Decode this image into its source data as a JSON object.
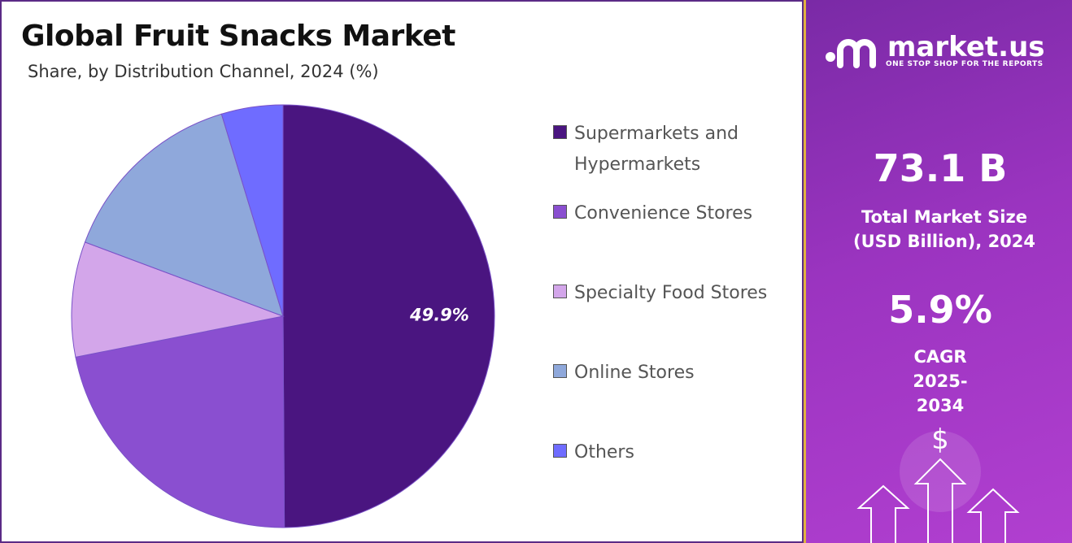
{
  "chart_data": {
    "type": "pie",
    "title": "Global Fruit Snacks Market",
    "subtitle": "Share, by Distribution Channel, 2024 (%)",
    "categories": [
      "Supermarkets and Hypermarkets",
      "Convenience Stores",
      "Specialty Food Stores",
      "Online Stores",
      "Others"
    ],
    "values": [
      49.9,
      22.0,
      8.8,
      14.6,
      4.7
    ],
    "value_labels": [
      "49.9%",
      null,
      null,
      null,
      null
    ],
    "colors": [
      "#4a1580",
      "#8a4fd0",
      "#d3a6ea",
      "#8fa8db",
      "#6f6cff"
    ]
  },
  "panel": {
    "brand": "market.us",
    "tagline": "ONE STOP SHOP FOR THE REPORTS",
    "market_size": "73.1 B",
    "market_size_label": "Total Market Size (USD Billion), 2024",
    "cagr": "5.9%",
    "cagr_label": "CAGR 2025-2034"
  }
}
